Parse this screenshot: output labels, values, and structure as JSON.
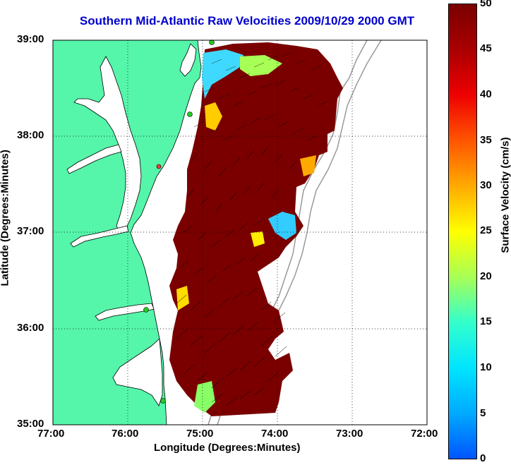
{
  "title": "Southern Mid-Atlantic Raw Velocities 2009/10/29 2000 GMT",
  "axes": {
    "x_label": "Longitude (Degrees:Minutes)",
    "y_label": "Latitude (Degrees:Minutes)",
    "x_ticks": [
      "77:00",
      "76:00",
      "75:00",
      "74:00",
      "73:00",
      "72:00"
    ],
    "y_ticks": [
      "39:00",
      "38:00",
      "37:00",
      "36:00",
      "35:00"
    ]
  },
  "colorbar": {
    "label": "Surface Velocity (cm/s)",
    "ticks": [
      "50",
      "45",
      "40",
      "35",
      "30",
      "25",
      "20",
      "15",
      "10",
      "5",
      "0"
    ],
    "min": 0,
    "max": 50,
    "colormap": "jet"
  },
  "colors": {
    "land": "#55f5aa",
    "ocean": "#ffffff",
    "title": "#0000cc",
    "high_velocity": "#7a0000",
    "bathymetry_line": "#999999",
    "station_marker": "#22cc22"
  },
  "map_extent": {
    "lon_min": -77.0,
    "lon_max": -72.0,
    "lat_min": 35.0,
    "lat_max": 39.0
  }
}
